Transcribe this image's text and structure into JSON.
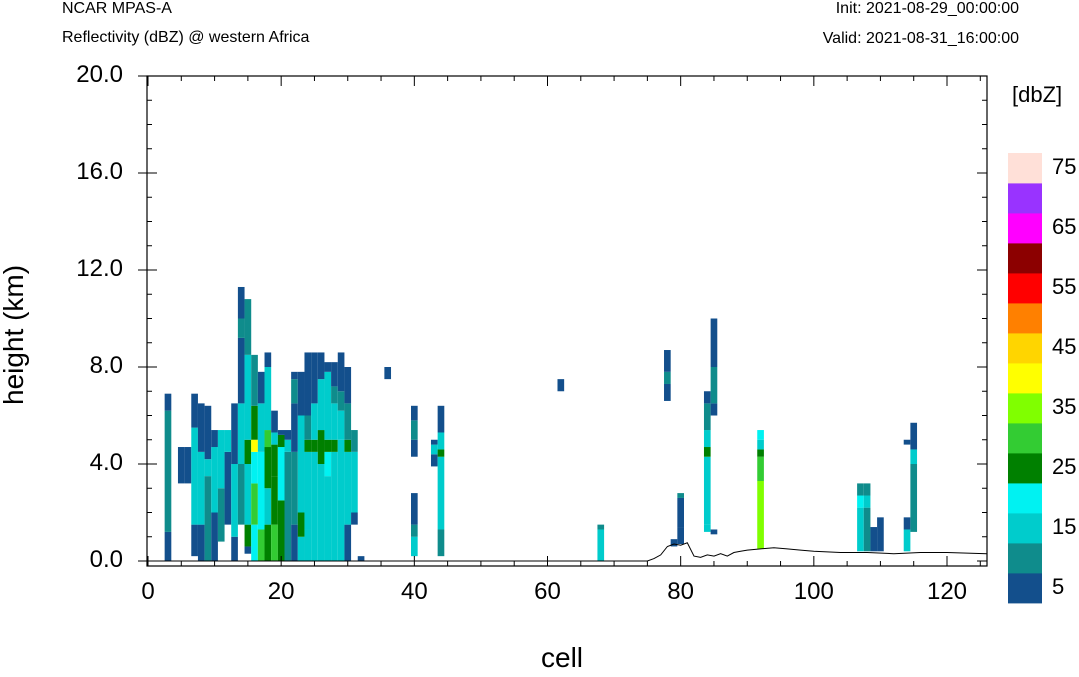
{
  "header": {
    "model": "NCAR MPAS-A",
    "subtitle": "Reflectivity (dBZ) @ western Africa",
    "init": "Init: 2021-08-29_00:00:00",
    "valid": "Valid: 2021-08-31_16:00:00"
  },
  "chart_data": {
    "type": "heatmap",
    "xlabel": "cell",
    "ylabel": "height (km)",
    "xlim": [
      0,
      126
    ],
    "ylim": [
      0,
      20
    ],
    "x_ticks": [
      "0",
      "20",
      "40",
      "60",
      "80",
      "100",
      "120"
    ],
    "y_ticks": [
      "0.0",
      "4.0",
      "8.0",
      "12.0",
      "16.0",
      "20.0"
    ],
    "colorbar": {
      "unit": "[dbZ]",
      "levels": [
        5,
        10,
        15,
        20,
        25,
        30,
        35,
        40,
        45,
        50,
        55,
        60,
        65,
        70,
        75
      ],
      "colors": [
        "#134f8c",
        "#0f8c8c",
        "#00cccc",
        "#00f2f2",
        "#008000",
        "#33cc33",
        "#80ff00",
        "#ffff00",
        "#ffd500",
        "#ff8000",
        "#ff0000",
        "#8c0000",
        "#ff00ff",
        "#9933ff",
        "#ffe0d8"
      ],
      "tick_labels": [
        "5",
        "15",
        "25",
        "35",
        "45",
        "55",
        "65",
        "75"
      ]
    },
    "columns": [
      {
        "x": 3,
        "segs": [
          [
            0.0,
            1.2,
            5
          ],
          [
            1.2,
            6.2,
            10
          ],
          [
            6.2,
            6.9,
            5
          ]
        ]
      },
      {
        "x": 5,
        "segs": [
          [
            3.2,
            4.7,
            5
          ]
        ]
      },
      {
        "x": 6,
        "segs": [
          [
            3.2,
            4.7,
            5
          ]
        ]
      },
      {
        "x": 7,
        "segs": [
          [
            0.2,
            1.5,
            5
          ],
          [
            1.5,
            5.5,
            15
          ],
          [
            5.5,
            6.9,
            5
          ]
        ]
      },
      {
        "x": 8,
        "segs": [
          [
            0.0,
            1.5,
            5
          ],
          [
            1.5,
            4.5,
            15
          ],
          [
            4.5,
            6.5,
            5
          ]
        ]
      },
      {
        "x": 9,
        "segs": [
          [
            0.0,
            3.5,
            10
          ],
          [
            3.5,
            4.2,
            15
          ],
          [
            4.2,
            6.4,
            5
          ]
        ]
      },
      {
        "x": 10,
        "segs": [
          [
            0.0,
            2.0,
            5
          ],
          [
            2.0,
            4.7,
            15
          ],
          [
            4.7,
            5.4,
            5
          ]
        ]
      },
      {
        "x": 11,
        "segs": [
          [
            0.8,
            3.0,
            10
          ],
          [
            3.0,
            5.4,
            15
          ]
        ]
      },
      {
        "x": 12,
        "segs": [
          [
            1.5,
            4.5,
            5
          ],
          [
            4.5,
            5.4,
            15
          ]
        ]
      },
      {
        "x": 13,
        "segs": [
          [
            0.0,
            1.0,
            5
          ],
          [
            1.0,
            4.0,
            15
          ],
          [
            4.0,
            6.5,
            5
          ]
        ]
      },
      {
        "x": 14,
        "segs": [
          [
            1.5,
            4.0,
            10
          ],
          [
            4.0,
            6.5,
            15
          ],
          [
            6.5,
            9.2,
            5
          ],
          [
            9.2,
            10.0,
            10
          ],
          [
            10.0,
            11.3,
            5
          ]
        ]
      },
      {
        "x": 15,
        "segs": [
          [
            0.3,
            0.6,
            5
          ],
          [
            0.6,
            1.5,
            25
          ],
          [
            1.5,
            4.0,
            15
          ],
          [
            4.0,
            5.0,
            25
          ],
          [
            5.0,
            8.5,
            15
          ],
          [
            8.5,
            10.8,
            10
          ]
        ]
      },
      {
        "x": 16,
        "segs": [
          [
            0.0,
            1.5,
            20
          ],
          [
            1.5,
            3.2,
            30
          ],
          [
            3.2,
            4.5,
            20
          ],
          [
            4.5,
            5.0,
            40
          ],
          [
            5.0,
            6.4,
            25
          ],
          [
            6.4,
            8.5,
            10
          ]
        ]
      },
      {
        "x": 17,
        "segs": [
          [
            0.0,
            1.3,
            30
          ],
          [
            1.3,
            4.5,
            20
          ],
          [
            4.5,
            6.5,
            15
          ],
          [
            6.5,
            7.8,
            5
          ]
        ]
      },
      {
        "x": 18,
        "segs": [
          [
            0.0,
            1.5,
            25
          ],
          [
            1.5,
            3.0,
            15
          ],
          [
            3.0,
            4.7,
            25
          ],
          [
            4.7,
            5.4,
            30
          ],
          [
            5.4,
            8.0,
            15
          ],
          [
            8.0,
            8.6,
            5
          ]
        ]
      },
      {
        "x": 19,
        "segs": [
          [
            0.0,
            1.5,
            30
          ],
          [
            1.5,
            3.5,
            25
          ],
          [
            3.5,
            4.8,
            25
          ],
          [
            4.8,
            5.3,
            15
          ],
          [
            5.3,
            6.2,
            5
          ]
        ]
      },
      {
        "x": 20,
        "segs": [
          [
            0.0,
            2.5,
            25
          ],
          [
            2.5,
            4.7,
            20
          ],
          [
            4.7,
            5.2,
            25
          ],
          [
            5.2,
            5.4,
            5
          ]
        ]
      },
      {
        "x": 21,
        "segs": [
          [
            0.0,
            4.5,
            10
          ],
          [
            4.5,
            5.0,
            15
          ],
          [
            5.0,
            5.4,
            5
          ]
        ]
      },
      {
        "x": 22,
        "segs": [
          [
            0.0,
            1.5,
            5
          ],
          [
            1.5,
            4.5,
            10
          ],
          [
            4.5,
            6.5,
            5
          ],
          [
            6.5,
            7.5,
            10
          ],
          [
            7.5,
            7.8,
            5
          ]
        ]
      },
      {
        "x": 23,
        "segs": [
          [
            0.0,
            1.0,
            15
          ],
          [
            1.0,
            2.0,
            25
          ],
          [
            2.0,
            4.0,
            15
          ],
          [
            4.0,
            6.0,
            15
          ],
          [
            6.0,
            7.8,
            5
          ]
        ]
      },
      {
        "x": 24,
        "segs": [
          [
            0.0,
            1.3,
            15
          ],
          [
            1.3,
            4.5,
            15
          ],
          [
            4.5,
            5.0,
            25
          ],
          [
            5.0,
            6.0,
            10
          ],
          [
            6.0,
            8.6,
            5
          ]
        ]
      },
      {
        "x": 25,
        "segs": [
          [
            0.0,
            4.5,
            15
          ],
          [
            4.5,
            5.0,
            25
          ],
          [
            5.0,
            6.5,
            15
          ],
          [
            6.5,
            8.6,
            5
          ]
        ]
      },
      {
        "x": 26,
        "segs": [
          [
            0.0,
            4.0,
            15
          ],
          [
            4.0,
            5.4,
            25
          ],
          [
            5.4,
            7.5,
            15
          ],
          [
            7.5,
            8.6,
            5
          ]
        ]
      },
      {
        "x": 27,
        "segs": [
          [
            0.0,
            3.5,
            15
          ],
          [
            3.5,
            4.5,
            20
          ],
          [
            4.5,
            5.0,
            25
          ],
          [
            5.0,
            7.8,
            15
          ],
          [
            7.8,
            8.2,
            5
          ]
        ]
      },
      {
        "x": 28,
        "segs": [
          [
            0.0,
            4.5,
            15
          ],
          [
            4.5,
            5.0,
            25
          ],
          [
            5.0,
            6.5,
            15
          ],
          [
            6.5,
            7.2,
            10
          ],
          [
            7.2,
            8.2,
            5
          ]
        ]
      },
      {
        "x": 29,
        "segs": [
          [
            0.0,
            4.0,
            15
          ],
          [
            4.0,
            5.0,
            15
          ],
          [
            5.0,
            6.2,
            15
          ],
          [
            6.2,
            7.0,
            10
          ],
          [
            7.0,
            8.6,
            5
          ]
        ]
      },
      {
        "x": 30,
        "segs": [
          [
            0.0,
            1.5,
            5
          ],
          [
            1.5,
            4.5,
            15
          ],
          [
            4.5,
            5.0,
            25
          ],
          [
            5.0,
            6.5,
            10
          ],
          [
            6.5,
            8.0,
            5
          ]
        ]
      },
      {
        "x": 31,
        "segs": [
          [
            1.5,
            2.0,
            5
          ],
          [
            2.0,
            4.5,
            15
          ],
          [
            4.5,
            5.4,
            10
          ]
        ]
      },
      {
        "x": 32,
        "segs": [
          [
            0.0,
            0.2,
            5
          ]
        ]
      },
      {
        "x": 36,
        "segs": [
          [
            7.5,
            8.0,
            5
          ]
        ]
      },
      {
        "x": 40,
        "segs": [
          [
            0.2,
            1.0,
            15
          ],
          [
            1.0,
            1.5,
            10
          ],
          [
            1.5,
            2.8,
            5
          ],
          [
            4.3,
            5.0,
            5
          ],
          [
            5.0,
            5.8,
            10
          ],
          [
            5.8,
            6.4,
            5
          ]
        ]
      },
      {
        "x": 43,
        "segs": [
          [
            3.9,
            4.4,
            5
          ],
          [
            4.4,
            4.8,
            15
          ],
          [
            4.8,
            5.0,
            5
          ]
        ]
      },
      {
        "x": 44,
        "segs": [
          [
            0.2,
            1.3,
            10
          ],
          [
            1.3,
            4.3,
            15
          ],
          [
            4.3,
            4.6,
            25
          ],
          [
            4.6,
            5.3,
            15
          ],
          [
            5.3,
            6.4,
            5
          ]
        ]
      },
      {
        "x": 62,
        "segs": [
          [
            7.0,
            7.5,
            5
          ]
        ]
      },
      {
        "x": 68,
        "segs": [
          [
            0.0,
            1.3,
            15
          ],
          [
            1.3,
            1.5,
            10
          ]
        ]
      },
      {
        "x": 78,
        "segs": [
          [
            6.6,
            7.3,
            5
          ],
          [
            7.3,
            7.8,
            10
          ],
          [
            7.8,
            8.7,
            5
          ]
        ]
      },
      {
        "x": 79,
        "segs": [
          [
            0.6,
            0.9,
            5
          ]
        ]
      },
      {
        "x": 80,
        "segs": [
          [
            0.7,
            1.4,
            5
          ],
          [
            1.4,
            2.6,
            5
          ],
          [
            2.6,
            2.8,
            10
          ]
        ]
      },
      {
        "x": 84,
        "segs": [
          [
            1.2,
            1.5,
            15
          ],
          [
            1.5,
            4.3,
            15
          ],
          [
            4.3,
            4.7,
            25
          ],
          [
            4.7,
            5.4,
            15
          ],
          [
            5.4,
            6.5,
            10
          ],
          [
            6.5,
            7.0,
            5
          ]
        ]
      },
      {
        "x": 85,
        "segs": [
          [
            1.1,
            1.3,
            5
          ],
          [
            6.0,
            6.5,
            5
          ],
          [
            6.5,
            8.0,
            10
          ],
          [
            8.0,
            10.0,
            5
          ]
        ]
      },
      {
        "x": 92,
        "segs": [
          [
            0.5,
            3.3,
            35
          ],
          [
            3.3,
            4.3,
            30
          ],
          [
            4.3,
            4.6,
            25
          ],
          [
            4.6,
            5.0,
            15
          ],
          [
            5.0,
            5.4,
            20
          ]
        ]
      },
      {
        "x": 107,
        "segs": [
          [
            0.4,
            2.2,
            15
          ],
          [
            2.2,
            2.7,
            20
          ],
          [
            2.7,
            3.2,
            10
          ]
        ]
      },
      {
        "x": 108,
        "segs": [
          [
            0.4,
            2.2,
            10
          ],
          [
            2.2,
            2.7,
            15
          ],
          [
            2.7,
            3.2,
            10
          ]
        ]
      },
      {
        "x": 109,
        "segs": [
          [
            0.4,
            1.4,
            5
          ]
        ]
      },
      {
        "x": 110,
        "segs": [
          [
            0.4,
            1.8,
            5
          ]
        ]
      },
      {
        "x": 114,
        "segs": [
          [
            0.4,
            1.3,
            15
          ],
          [
            1.3,
            1.8,
            5
          ],
          [
            4.8,
            5.0,
            5
          ]
        ]
      },
      {
        "x": 115,
        "segs": [
          [
            1.2,
            4.0,
            10
          ],
          [
            4.0,
            4.6,
            15
          ],
          [
            4.6,
            5.7,
            5
          ]
        ]
      }
    ],
    "terrain": [
      [
        0,
        0
      ],
      [
        75,
        0
      ],
      [
        76,
        0.1
      ],
      [
        77,
        0.25
      ],
      [
        78,
        0.6
      ],
      [
        79,
        0.7
      ],
      [
        80,
        0.65
      ],
      [
        81,
        0.75
      ],
      [
        82,
        0.2
      ],
      [
        83,
        0.15
      ],
      [
        84,
        0.25
      ],
      [
        85,
        0.2
      ],
      [
        86,
        0.3
      ],
      [
        87,
        0.2
      ],
      [
        88,
        0.35
      ],
      [
        89,
        0.4
      ],
      [
        90,
        0.45
      ],
      [
        92,
        0.5
      ],
      [
        94,
        0.55
      ],
      [
        96,
        0.5
      ],
      [
        98,
        0.45
      ],
      [
        100,
        0.4
      ],
      [
        104,
        0.35
      ],
      [
        108,
        0.35
      ],
      [
        112,
        0.3
      ],
      [
        116,
        0.35
      ],
      [
        120,
        0.35
      ],
      [
        126,
        0.3
      ]
    ]
  }
}
